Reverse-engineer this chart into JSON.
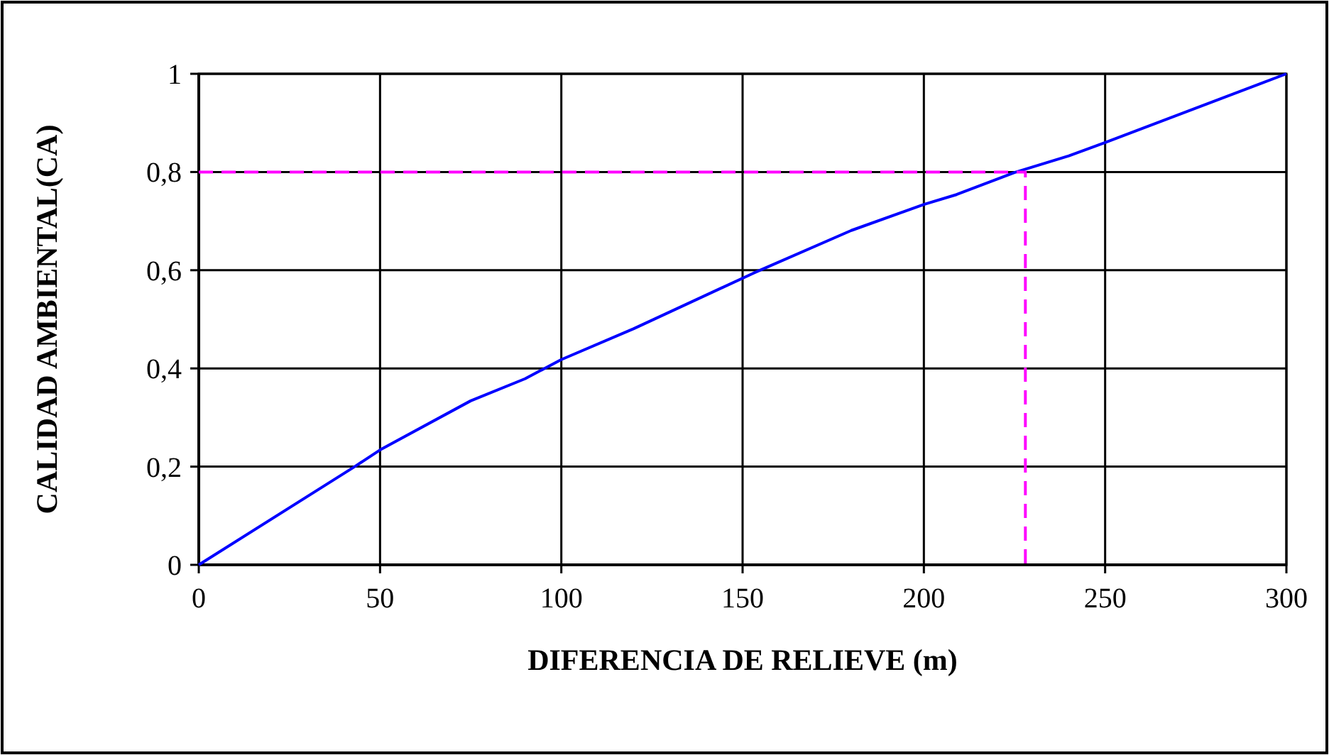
{
  "chart_data": {
    "type": "line",
    "xlabel": "DIFERENCIA DE RELIEVE (m)",
    "ylabel": "CALIDAD AMBIENTAL(CA)",
    "xlim": [
      0,
      300
    ],
    "ylim": [
      0,
      1
    ],
    "xticks": [
      0,
      50,
      100,
      150,
      200,
      250,
      300
    ],
    "yticks": [
      0,
      {
        "value": 0.2,
        "label": "0,2"
      },
      {
        "value": 0.4,
        "label": "0,4"
      },
      {
        "value": 0.6,
        "label": "0,6"
      },
      {
        "value": 0.8,
        "label": "0,8"
      },
      1
    ],
    "grid": true,
    "marker": "none",
    "series": [
      {
        "color": "#0000ff",
        "line_style": "solid",
        "x": [
          0,
          43,
          50,
          75,
          90,
          100,
          120,
          153,
          180,
          200,
          209,
          225,
          240,
          250,
          300
        ],
        "values": [
          0,
          0.2,
          0.234,
          0.334,
          0.379,
          0.418,
          0.481,
          0.594,
          0.681,
          0.734,
          0.754,
          0.799,
          0.833,
          0.86,
          1
        ]
      },
      {
        "color": "#ff00ff",
        "line_style": "dashed",
        "x": [
          0,
          228,
          228
        ],
        "values": [
          0.8,
          0.8,
          0
        ]
      }
    ]
  }
}
